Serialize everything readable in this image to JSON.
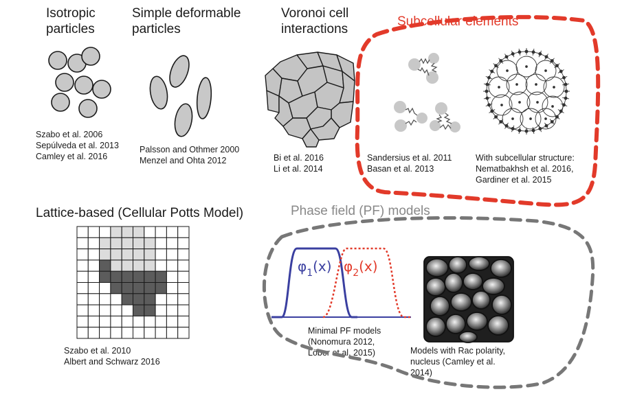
{
  "panels": {
    "isotropic": {
      "title": "Isotropic\nparticles",
      "refs": "Szabo et al. 2006\nSepúlveda et al. 2013\nCamley et al. 2016"
    },
    "deformable": {
      "title": "Simple deformable\nparticles",
      "refs": "Palsson and Othmer 2000\nMenzel and Ohta 2012"
    },
    "voronoi": {
      "title": "Voronoi cell\ninteractions",
      "refs": "Bi et al. 2016\nLi et al. 2014"
    },
    "subcellular": {
      "title": "Subcellular elements",
      "refs_left": "Sandersius et al. 2011\nBasan et al. 2013",
      "refs_right": "With subcellular structure:\nNematbakhsh et al. 2016,\nGardiner et al. 2015"
    },
    "lattice": {
      "title": "Lattice-based (Cellular Potts Model)",
      "refs": "Szabo et al. 2010\nAlbert and Schwarz 2016"
    },
    "phasefield": {
      "title": "Phase field (PF) models",
      "phi1_symbol": "φ",
      "phi1_sub": "1",
      "phi1_arg": "(x)",
      "phi2_symbol": "φ",
      "phi2_sub": "2",
      "phi2_arg": "(x)",
      "refs_left": "Minimal PF models\n(Nonomura 2012,\nLöber et al. 2015)",
      "refs_right": "Models with Rac polarity,\nnucleus (Camley et al.\n2014)"
    }
  },
  "colors": {
    "red": "#e23a2a",
    "grey_dash": "#777777",
    "blue": "#3a3fa0",
    "cell_fill": "#c8c8c8",
    "lattice_light": "#dcdcdc",
    "lattice_dark": "#5c5c5c"
  }
}
